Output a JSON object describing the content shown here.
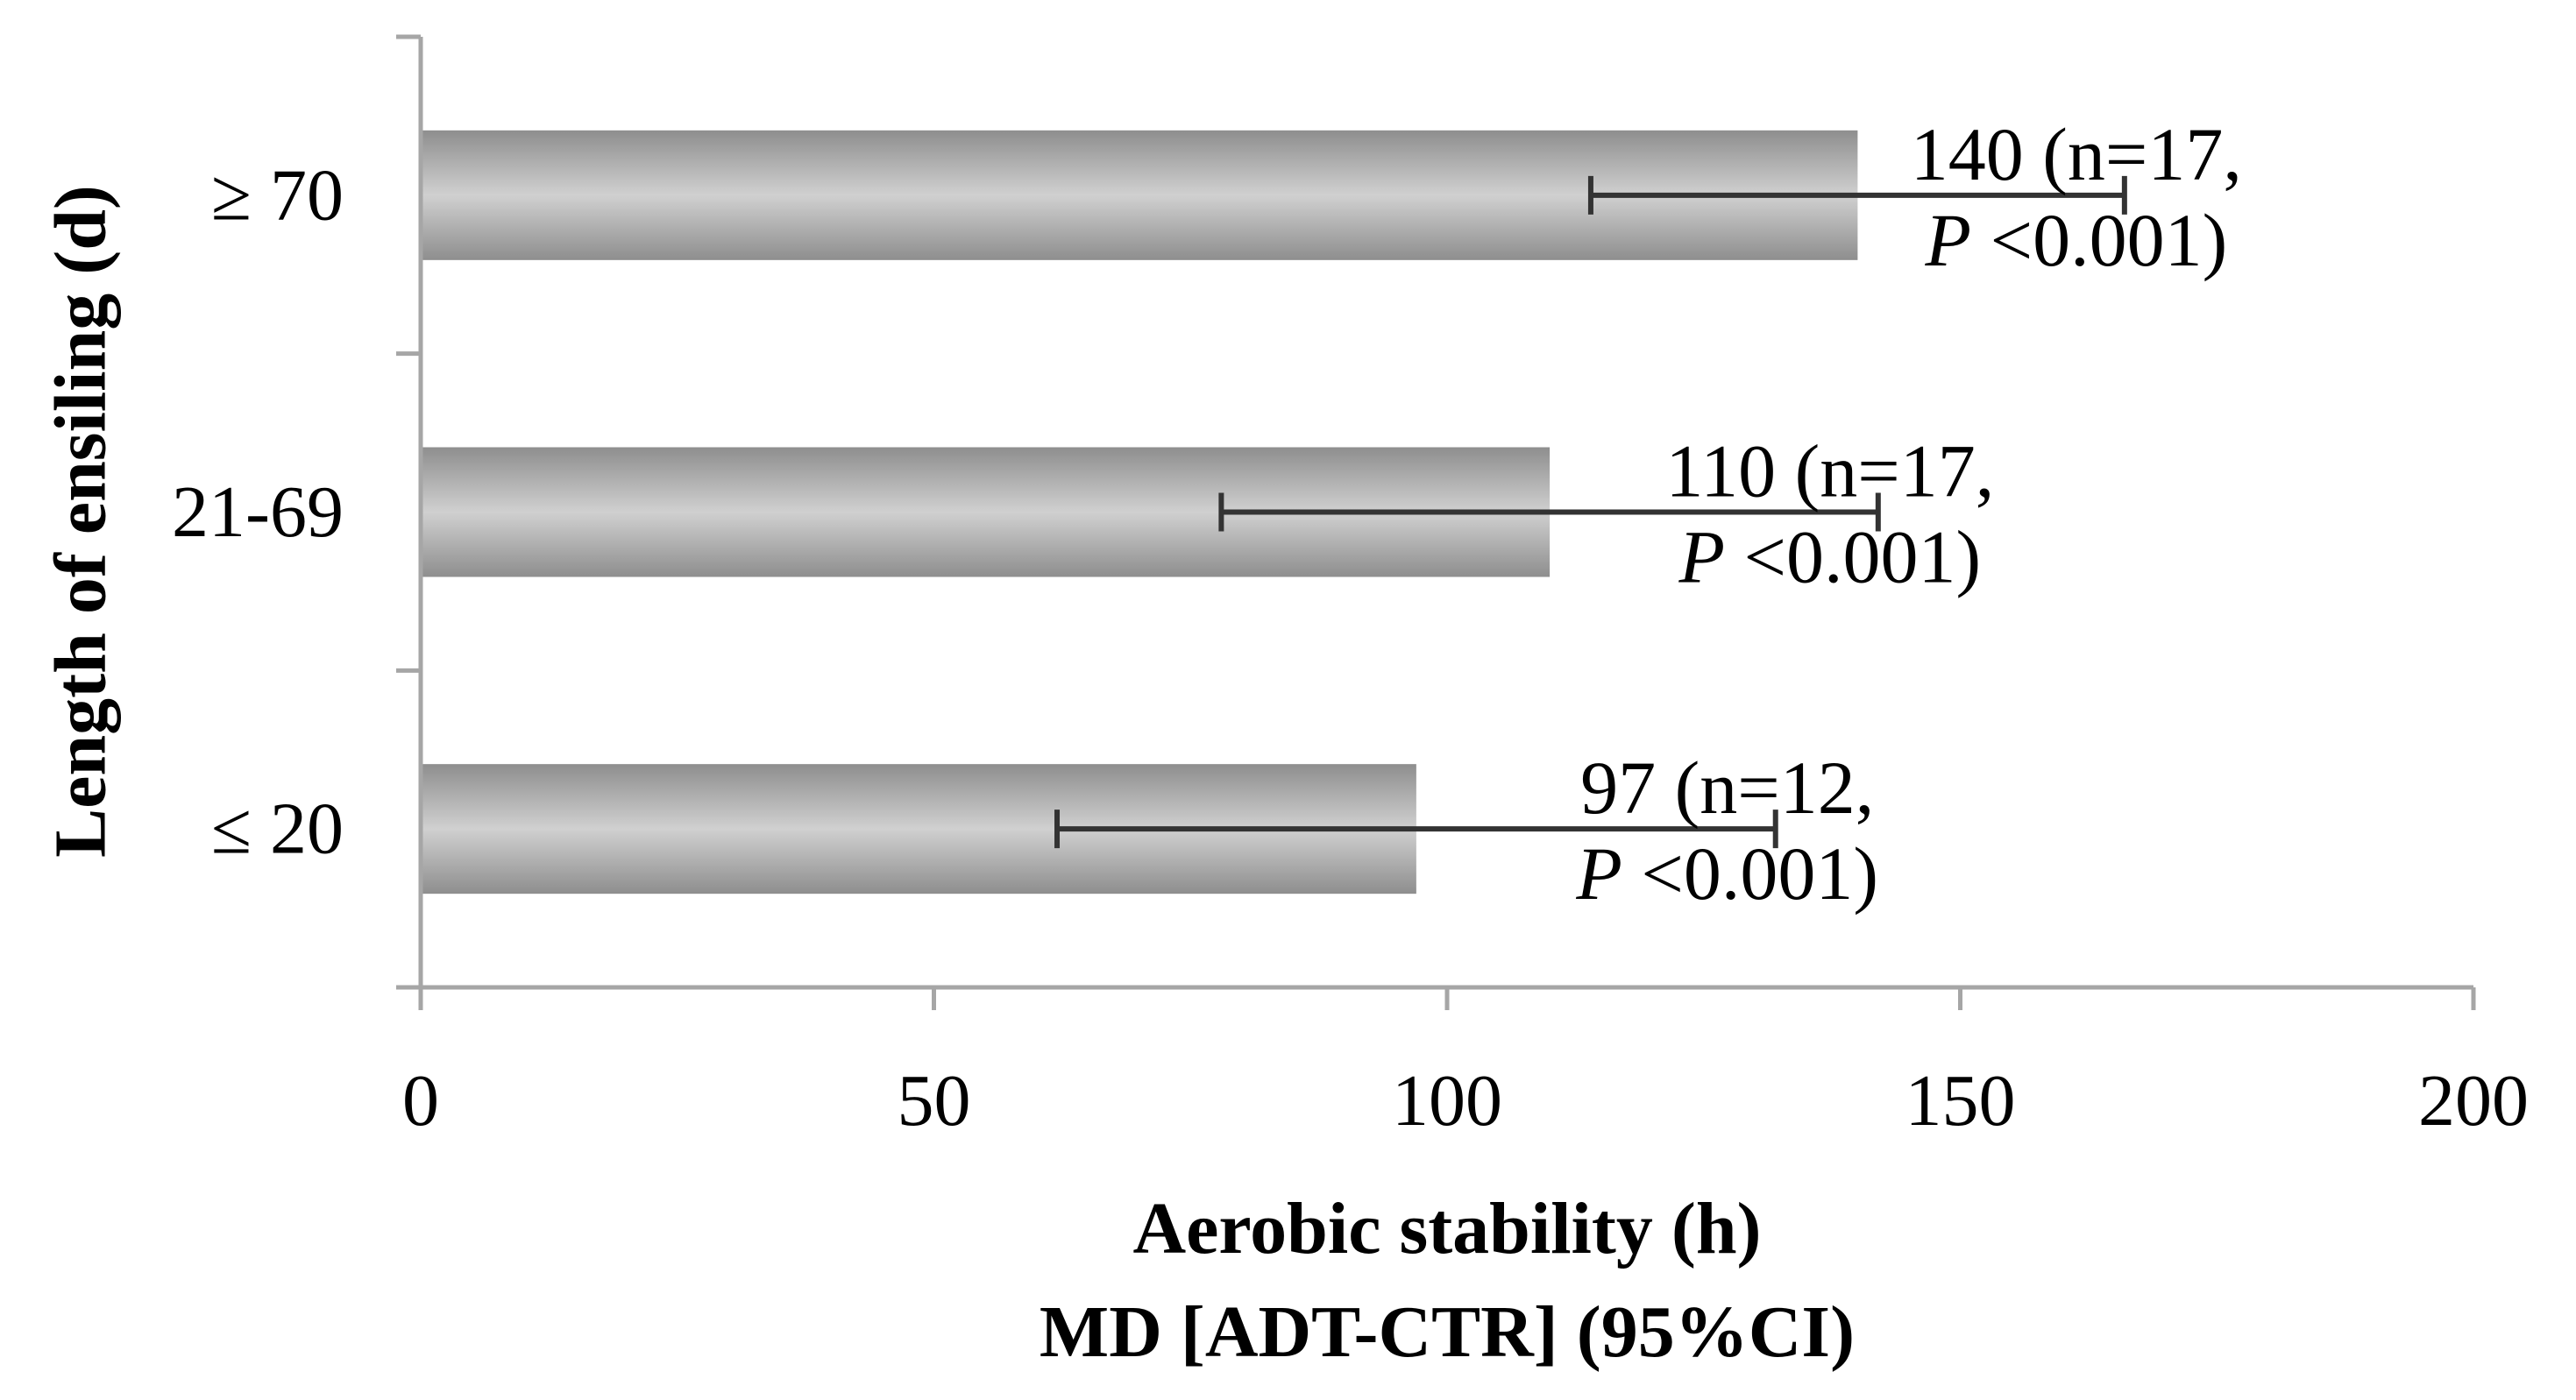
{
  "chart_data": {
    "type": "bar",
    "orientation": "horizontal",
    "title": "",
    "xlabel_lines": [
      "Aerobic stability (h)",
      "MD [ADT-CTR] (95%CI)"
    ],
    "ylabel": "Length of ensiling (d)",
    "xlim": [
      0,
      200
    ],
    "xticks": [
      0,
      50,
      100,
      150,
      200
    ],
    "xtick_labels": [
      "0",
      "50",
      "100",
      "150",
      "200"
    ],
    "grid": false,
    "legend": "none",
    "categories": [
      "≥ 70",
      "21-69",
      "≤ 20"
    ],
    "values": [
      140,
      110,
      97
    ],
    "ci_lower": [
      114,
      78,
      62
    ],
    "ci_upper": [
      166,
      142,
      132
    ],
    "data_labels": [
      {
        "line1": "140 (n=17,",
        "p_symbol": "P",
        "p_text": " <0.001)"
      },
      {
        "line1": "110 (n=17,",
        "p_symbol": "P",
        "p_text": " <0.001)"
      },
      {
        "line1": "97 (n=12,",
        "p_symbol": "P",
        "p_text": " <0.001)"
      }
    ],
    "colors": {
      "bar_edge": "#8e8e8e",
      "bar_center": "#d0d0d0",
      "axis": "#a6a6a6",
      "error_bar": "#333333",
      "text": "#000000"
    }
  }
}
